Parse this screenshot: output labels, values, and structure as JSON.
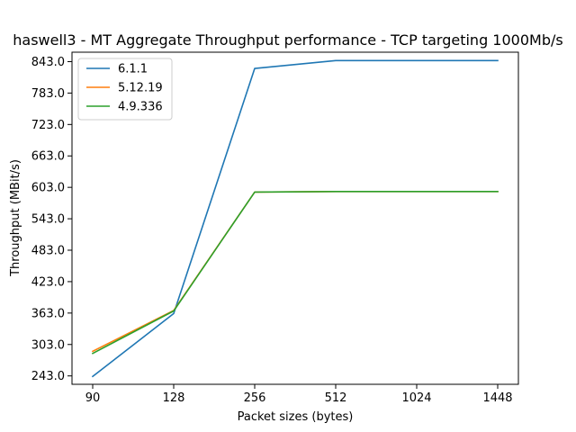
{
  "chart_data": {
    "type": "line",
    "title": "haswell3 - MT Aggregate Throughput performance - TCP targeting 1000Mb/s",
    "xlabel": "Packet sizes (bytes)",
    "ylabel": "Throughput (MBit/s)",
    "categories": [
      "90",
      "128",
      "256",
      "512",
      "1024",
      "1448"
    ],
    "yticks": [
      "243.0",
      "303.0",
      "363.0",
      "423.0",
      "483.0",
      "543.0",
      "603.0",
      "663.0",
      "723.0",
      "783.0",
      "843.0"
    ],
    "ylim": [
      227,
      861
    ],
    "legend_position": "top-left",
    "grid": false,
    "series": [
      {
        "name": "6.1.1",
        "color": "#1f77b4",
        "values": [
          242,
          362,
          830,
          845,
          845,
          845
        ]
      },
      {
        "name": "5.12.19",
        "color": "#ff7f0e",
        "values": [
          290,
          368,
          594,
          595,
          595,
          595
        ]
      },
      {
        "name": "4.9.336",
        "color": "#2ca02c",
        "values": [
          286,
          367,
          594,
          595,
          595,
          595
        ]
      }
    ]
  }
}
